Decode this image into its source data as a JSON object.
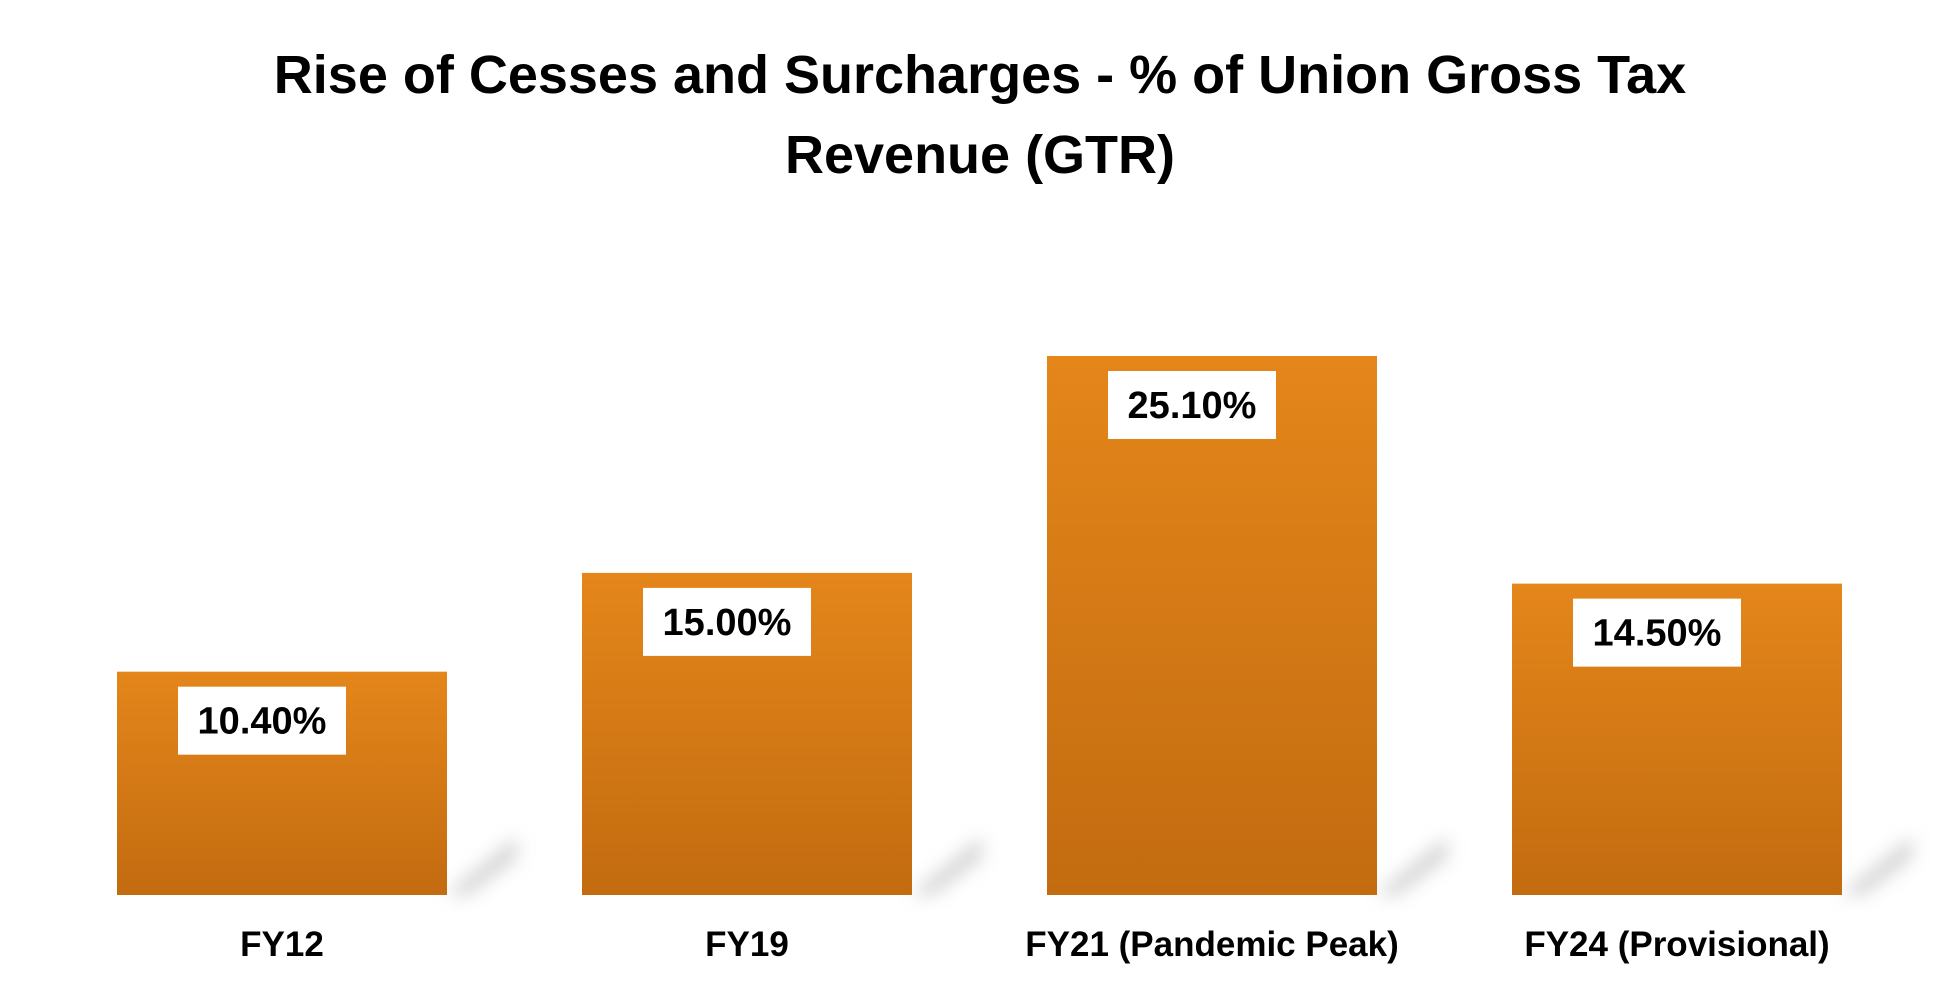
{
  "chart_data": {
    "type": "bar",
    "title": "Rise of Cesses and Surcharges - % of Union Gross Tax Revenue (GTR)",
    "title_lines": [
      "Rise of Cesses and Surcharges - % of Union Gross Tax",
      "Revenue (GTR)"
    ],
    "categories": [
      "FY12",
      "FY19",
      "FY21 (Pandemic Peak)",
      "FY24 (Provisional)"
    ],
    "values": [
      10.4,
      15.0,
      25.1,
      14.5
    ],
    "value_labels": [
      "10.40%",
      "15.00%",
      "25.10%",
      "14.50%"
    ],
    "xlabel": "",
    "ylabel": "",
    "ylim": [
      0,
      25.1
    ],
    "grid": false,
    "legend": "none",
    "colors": {
      "bar_top": "#e4861a",
      "bar_bottom": "#c26b10",
      "label_box": "#ffffff",
      "shadow": "#bfbfbf"
    }
  }
}
